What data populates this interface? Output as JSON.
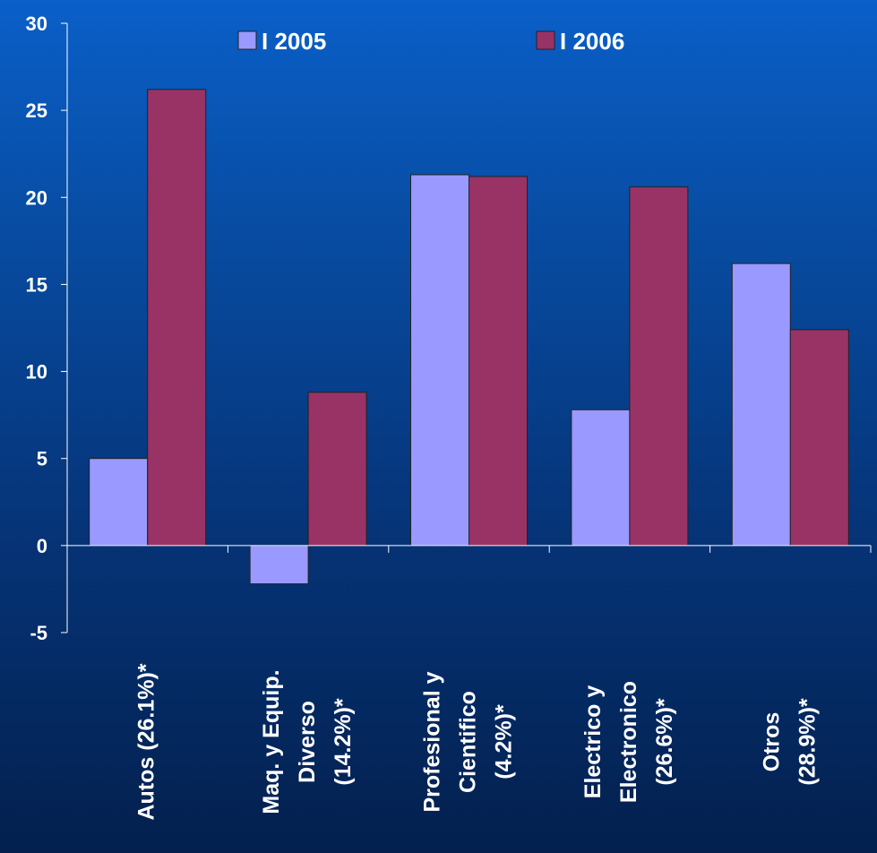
{
  "chart_data": {
    "type": "bar",
    "categories": [
      [
        "Autos (26.1%)*"
      ],
      [
        "Maq. y Equip.",
        "Diverso",
        "(14.2%)*"
      ],
      [
        "Profesional y",
        "Cientifico",
        "(4.2%)*"
      ],
      [
        "Electrico y",
        "Electronico",
        "(26.6%)*"
      ],
      [
        "Otros",
        "(28.9%)*"
      ]
    ],
    "series": [
      {
        "name": "I 2005",
        "color": "#9999ff",
        "values": [
          5.0,
          -2.2,
          21.3,
          7.8,
          16.2
        ]
      },
      {
        "name": "I 2006",
        "color": "#993366",
        "values": [
          26.2,
          8.8,
          21.2,
          20.6,
          12.4
        ]
      }
    ],
    "ylim": [
      -5,
      30
    ],
    "yticks": [
      -5,
      0,
      5,
      10,
      15,
      20,
      25,
      30
    ],
    "legend_position": "top",
    "grid": false
  }
}
